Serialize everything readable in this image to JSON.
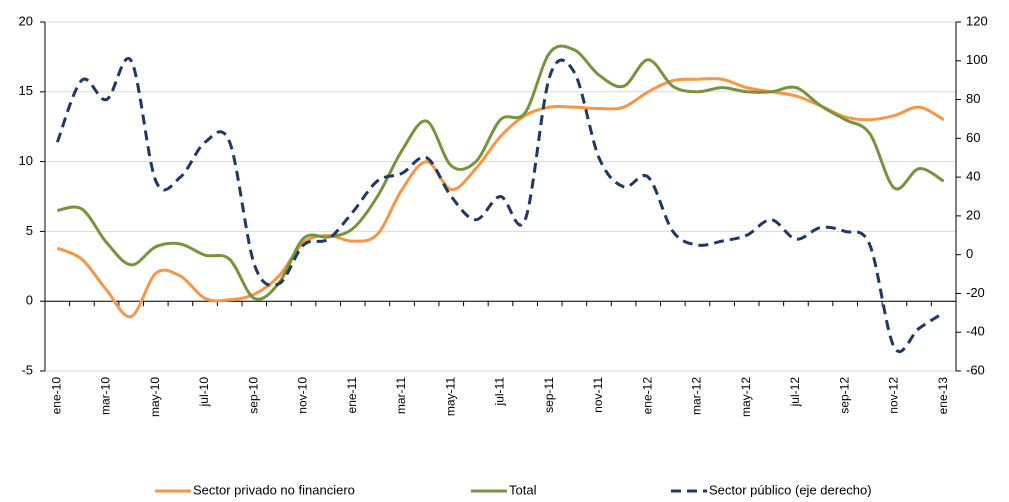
{
  "chart_data": {
    "type": "line",
    "categories": [
      "ene-10",
      null,
      "mar-10",
      null,
      "may-10",
      null,
      "jul-10",
      null,
      "sep-10",
      null,
      "nov-10",
      null,
      "ene-11",
      null,
      "mar-11",
      null,
      "may-11",
      null,
      "jul-11",
      null,
      "sep-11",
      null,
      "nov-11",
      null,
      "ene-12",
      null,
      "mar-12",
      null,
      "may-12",
      null,
      "jul-12",
      null,
      "sep-12",
      null,
      "nov-12",
      null,
      "ene-13"
    ],
    "series": [
      {
        "name": "Sector privado no financiero",
        "color": "#f79646",
        "dash": false,
        "values": [
          3.8,
          3.0,
          0.8,
          -1.1,
          2.0,
          1.8,
          0.2,
          0.1,
          0.5,
          1.8,
          4.2,
          4.7,
          4.3,
          4.8,
          8.0,
          10.0,
          8.0,
          9.5,
          11.8,
          13.3,
          13.9,
          13.9,
          13.8,
          13.9,
          15.0,
          15.8,
          15.9,
          15.9,
          15.3,
          15.0,
          14.7,
          14.0,
          13.2,
          13.0,
          13.3,
          13.9,
          13.0
        ]
      },
      {
        "name": "Total",
        "color": "#77933c",
        "dash": false,
        "values": [
          6.5,
          6.6,
          4.2,
          2.6,
          3.9,
          4.1,
          3.3,
          3.0,
          0.2,
          1.3,
          4.5,
          4.6,
          5.2,
          7.5,
          10.8,
          12.9,
          9.7,
          10.0,
          13.0,
          13.5,
          17.8,
          18.0,
          16.2,
          15.4,
          17.3,
          15.4,
          15.0,
          15.3,
          15.0,
          15.0,
          15.3,
          14.0,
          13.0,
          12.0,
          8.1,
          9.5,
          8.6
        ]
      },
      {
        "name": "Sector público (eje derecho)",
        "color": "#1f3864",
        "dash": true,
        "axis": "y2",
        "values": [
          58,
          90,
          80,
          100,
          38,
          40,
          58,
          58,
          -5,
          -15,
          5,
          8,
          22,
          38,
          42,
          50,
          30,
          18,
          30,
          18,
          92,
          94,
          50,
          35,
          40,
          12,
          5,
          7,
          10,
          18,
          8,
          14,
          12,
          5,
          -48,
          -38,
          -30
        ]
      }
    ],
    "ylim": [
      -5,
      20
    ],
    "yticks": [
      -5,
      0,
      5,
      10,
      15,
      20
    ],
    "y2lim": [
      -60,
      120
    ],
    "y2ticks": [
      -60,
      -40,
      -20,
      0,
      20,
      40,
      60,
      80,
      100,
      120
    ],
    "grid": true,
    "legend": "bottom"
  }
}
